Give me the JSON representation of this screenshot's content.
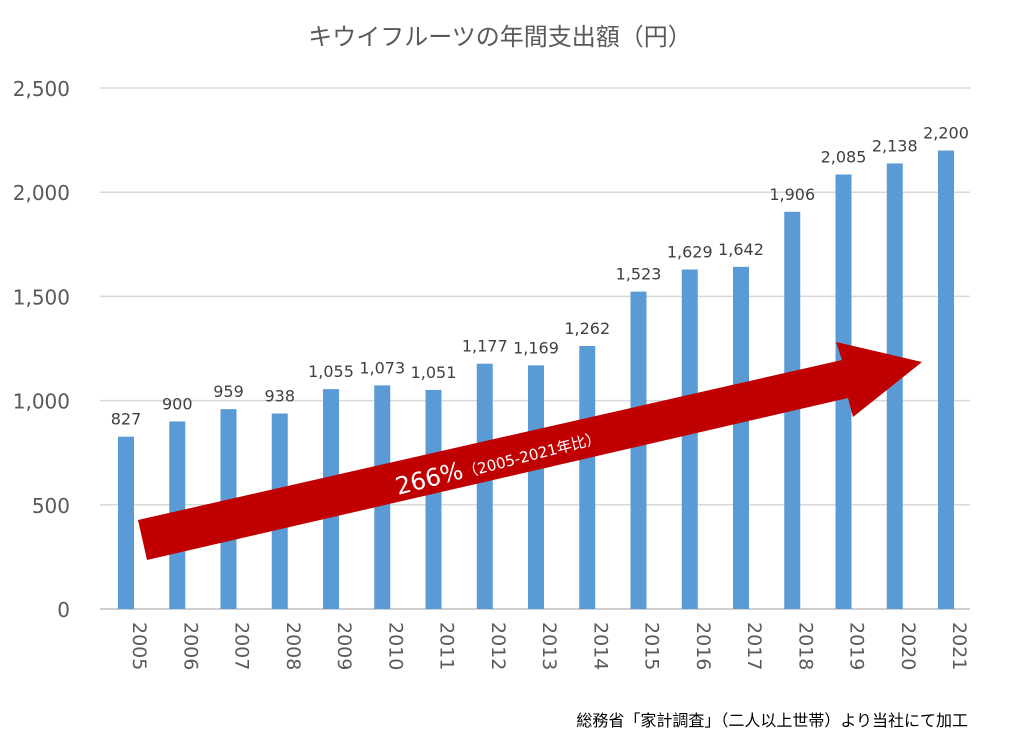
{
  "chart_data": {
    "type": "bar",
    "title": "キウイフルーツの年間支出額（円）",
    "categories": [
      "2005",
      "2006",
      "2007",
      "2008",
      "2009",
      "2010",
      "2011",
      "2012",
      "2013",
      "2014",
      "2015",
      "2016",
      "2017",
      "2018",
      "2019",
      "2020",
      "2021"
    ],
    "values": [
      827,
      900,
      959,
      938,
      1055,
      1073,
      1051,
      1177,
      1169,
      1262,
      1523,
      1629,
      1642,
      1906,
      2085,
      2138,
      2200
    ],
    "data_labels": [
      "827",
      "900",
      "959",
      "938",
      "1,055",
      "1,073",
      "1,051",
      "1,177",
      "1,169",
      "1,262",
      "1,523",
      "1,629",
      "1,642",
      "1,906",
      "2,085",
      "2,138",
      "2,200"
    ],
    "yticks": [
      0,
      500,
      1000,
      1500,
      2000,
      2500
    ],
    "ytick_labels": [
      "0",
      "500",
      "1,000",
      "1,500",
      "2,000",
      "2,500"
    ],
    "ylim": [
      0,
      2500
    ],
    "grid": true,
    "legend": "none",
    "bar_color": "#5b9bd5",
    "annotation": {
      "main": "266%",
      "sub": "（2005-2021年比）",
      "arrow_color": "#c00000"
    },
    "source": "総務省「家計調査」（二人以上世帯）より当社にて加工"
  }
}
